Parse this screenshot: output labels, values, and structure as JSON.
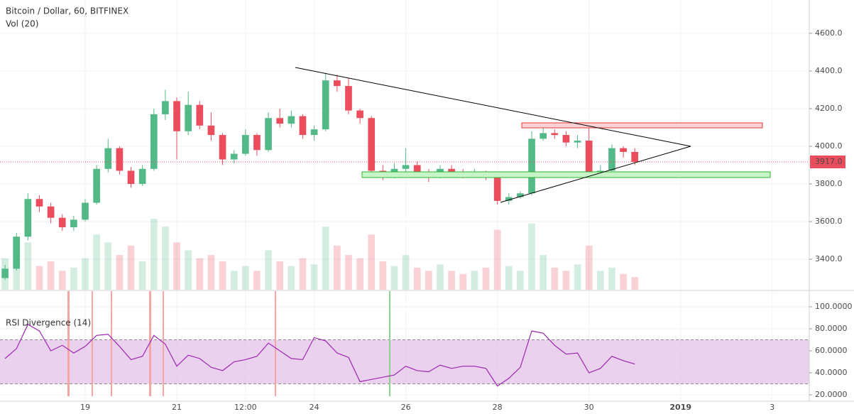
{
  "chart_data": [
    {
      "type": "candlestick",
      "title": "Bitcoin / Dollar, 60, BITFINEX",
      "subtitle": "Vol (20)",
      "x": [
        0.25,
        0.5,
        0.75,
        1.0,
        1.25,
        1.5,
        1.75,
        2.0,
        2.25,
        2.5,
        2.75,
        3.0,
        3.25,
        3.5,
        3.75,
        4.0,
        4.25,
        4.5,
        4.75,
        5.0,
        5.25,
        5.5,
        5.75,
        6.0,
        6.25,
        6.5,
        6.75,
        7.0,
        7.25,
        7.5,
        7.75,
        8.0,
        8.25,
        8.5,
        8.75,
        9.0,
        9.25,
        9.5,
        9.75,
        10.0,
        10.25,
        10.5,
        10.75,
        11.0,
        11.25,
        11.5,
        11.75,
        12.0,
        12.25,
        12.5,
        12.75,
        13.0,
        13.25,
        13.5,
        13.75,
        14.0
      ],
      "open": [
        3300,
        3350,
        3520,
        3720,
        3680,
        3620,
        3570,
        3610,
        3700,
        3880,
        3990,
        3870,
        3800,
        3880,
        4170,
        4240,
        4080,
        4220,
        4110,
        4060,
        3930,
        3960,
        4060,
        3980,
        4150,
        4120,
        4160,
        4060,
        4090,
        4350,
        4320,
        4190,
        4150,
        3870,
        3850,
        3880,
        3900,
        3860,
        3840,
        3880,
        3860,
        3850,
        3860,
        3840,
        3710,
        3730,
        3750,
        4040,
        4070,
        4060,
        4020,
        4030,
        3860,
        3870,
        3990,
        3970
      ],
      "high": [
        3370,
        3540,
        3750,
        3740,
        3700,
        3640,
        3630,
        3720,
        3900,
        4040,
        4000,
        3890,
        3900,
        4200,
        4300,
        4260,
        4290,
        4240,
        4180,
        4070,
        3980,
        4090,
        4070,
        4180,
        4200,
        4190,
        4170,
        4110,
        4390,
        4380,
        4360,
        4200,
        4160,
        3900,
        3910,
        3990,
        3920,
        3880,
        3900,
        3900,
        3880,
        3880,
        3870,
        3850,
        3750,
        3760,
        4080,
        4100,
        4090,
        4080,
        4060,
        4100,
        3900,
        4010,
        4000,
        3990
      ],
      "low": [
        3290,
        3340,
        3500,
        3650,
        3590,
        3550,
        3550,
        3600,
        3690,
        3860,
        3850,
        3780,
        3790,
        3870,
        4140,
        3930,
        4060,
        4090,
        4030,
        3900,
        3910,
        3950,
        3950,
        3970,
        4100,
        4100,
        4040,
        4030,
        4080,
        4290,
        4170,
        4120,
        3840,
        3820,
        3830,
        3860,
        3840,
        3810,
        3830,
        3840,
        3830,
        3840,
        3820,
        3690,
        3690,
        3720,
        3740,
        4030,
        4040,
        4000,
        3990,
        3840,
        3840,
        3860,
        3940,
        3900
      ],
      "close": [
        3350,
        3520,
        3720,
        3680,
        3620,
        3570,
        3610,
        3700,
        3880,
        3990,
        3870,
        3800,
        3880,
        4170,
        4240,
        4080,
        4220,
        4110,
        4060,
        3930,
        3960,
        4060,
        3980,
        4150,
        4120,
        4160,
        4060,
        4090,
        4350,
        4320,
        4190,
        4150,
        3870,
        3850,
        3880,
        3900,
        3860,
        3840,
        3880,
        3860,
        3850,
        3860,
        3840,
        3710,
        3730,
        3750,
        4040,
        4070,
        4060,
        4020,
        4030,
        3860,
        3870,
        3990,
        3970,
        3917
      ],
      "volume": [
        20,
        25,
        30,
        15,
        18,
        12,
        14,
        20,
        35,
        30,
        22,
        28,
        18,
        45,
        40,
        30,
        25,
        20,
        22,
        18,
        12,
        15,
        12,
        25,
        18,
        15,
        20,
        16,
        40,
        28,
        22,
        20,
        35,
        18,
        15,
        22,
        14,
        12,
        16,
        12,
        10,
        12,
        14,
        38,
        15,
        12,
        42,
        22,
        14,
        12,
        16,
        28,
        12,
        14,
        10,
        8
      ],
      "up_color": "#53b987",
      "down_color": "#eb4d5c",
      "xlim": [
        0.14,
        17.81
      ],
      "xticks": [
        {
          "value": 2,
          "label": "19"
        },
        {
          "value": 4,
          "label": "21"
        },
        {
          "value": 5.5,
          "label": "12:00"
        },
        {
          "value": 7,
          "label": "24"
        },
        {
          "value": 9,
          "label": "26"
        },
        {
          "value": 11,
          "label": "28"
        },
        {
          "value": 13,
          "label": "30"
        },
        {
          "value": 15,
          "label": "2019"
        },
        {
          "value": 17,
          "label": "3"
        }
      ],
      "ylim": [
        3238,
        4777
      ],
      "yticks": [
        {
          "value": 3400,
          "label": "3400.0"
        },
        {
          "value": 3600,
          "label": "3600.0"
        },
        {
          "value": 3800,
          "label": "3800.0"
        },
        {
          "value": 4000,
          "label": "4000.0"
        },
        {
          "value": 4200,
          "label": "4200.0"
        },
        {
          "value": 4400,
          "label": "4400.0"
        },
        {
          "value": 4600,
          "label": "4600.0"
        }
      ],
      "grid": true,
      "last_price": 3917,
      "last_price_label": "3917.0"
    },
    {
      "type": "line",
      "title": "RSI Divergence (14)",
      "values": [
        53,
        62,
        84,
        78,
        60,
        65,
        58,
        64,
        74,
        75,
        64,
        52,
        55,
        74,
        66,
        46,
        56,
        53,
        45,
        42,
        50,
        52,
        55,
        67,
        60,
        53,
        52,
        72,
        69,
        58,
        54,
        32,
        34,
        36,
        38,
        46,
        42,
        41,
        47,
        44,
        46,
        46,
        44,
        28,
        35,
        45,
        78,
        76,
        65,
        57,
        58,
        40,
        44,
        55,
        51,
        48
      ],
      "color": "#9c27b0",
      "band": [
        30,
        70
      ],
      "band_color": "#e1bee7",
      "ylim": [
        14.2,
        114.2
      ],
      "yticks": [
        {
          "value": 20,
          "label": "20.0000"
        },
        {
          "value": 40,
          "label": "40.0000"
        },
        {
          "value": 60,
          "label": "60.0000"
        },
        {
          "value": 80,
          "label": "80.0000"
        },
        {
          "value": 100,
          "label": "100.0000"
        }
      ],
      "grid": true
    }
  ]
}
